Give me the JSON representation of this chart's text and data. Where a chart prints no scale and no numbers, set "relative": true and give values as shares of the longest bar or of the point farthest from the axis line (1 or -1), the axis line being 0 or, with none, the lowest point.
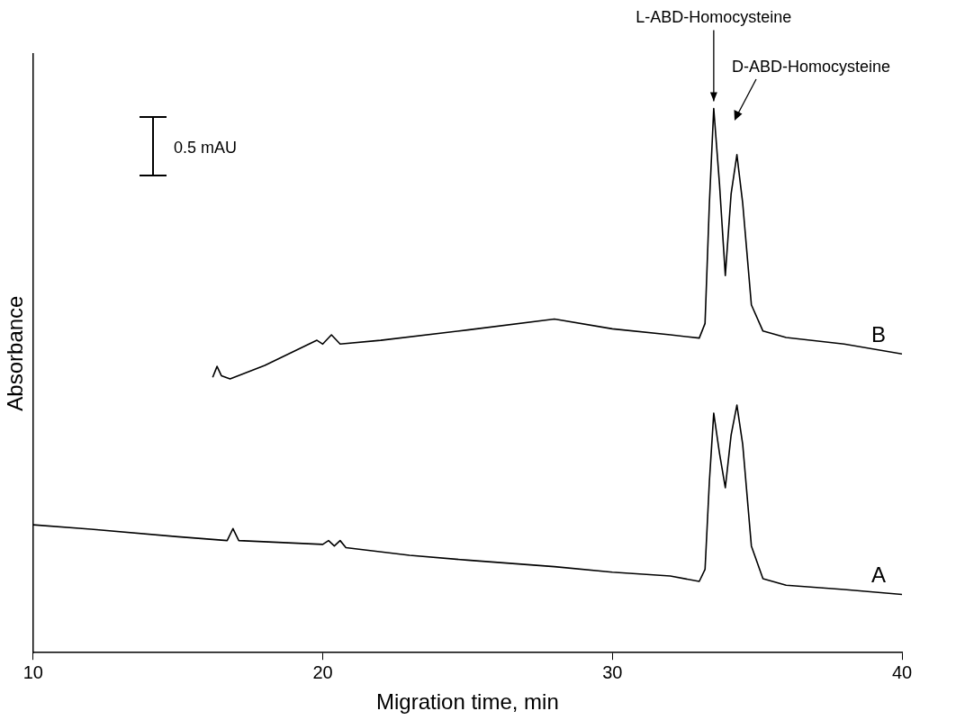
{
  "chart_data": {
    "type": "line",
    "relative": true,
    "xlabel": "Migration time, min",
    "ylabel": "Absorbance",
    "xlim": [
      10,
      40
    ],
    "xticks": [
      10,
      20,
      30,
      40
    ],
    "grid": false,
    "legend": false,
    "marker": "none",
    "line_style": "solid",
    "series": [
      {
        "name": "A",
        "color": "#000000",
        "x": [
          10,
          12,
          15,
          16.7,
          16.9,
          17.1,
          20,
          20.2,
          20.4,
          20.6,
          20.8,
          23,
          25,
          28,
          30,
          32,
          33,
          33.2,
          33.35,
          33.5,
          33.7,
          33.9,
          34.1,
          34.3,
          34.5,
          34.8,
          35.2,
          36,
          38,
          40
        ],
        "values": [
          0.235,
          0.227,
          0.213,
          0.206,
          0.228,
          0.206,
          0.199,
          0.206,
          0.196,
          0.206,
          0.193,
          0.179,
          0.17,
          0.158,
          0.148,
          0.141,
          0.131,
          0.153,
          0.315,
          0.44,
          0.366,
          0.303,
          0.4,
          0.455,
          0.383,
          0.196,
          0.136,
          0.124,
          0.116,
          0.107
        ]
      },
      {
        "name": "B",
        "color": "#000000",
        "x": [
          16.2,
          16.35,
          16.5,
          16.8,
          18,
          19.8,
          20,
          20.3,
          20.6,
          22,
          25,
          28,
          30,
          32,
          33,
          33.2,
          33.35,
          33.5,
          33.7,
          33.9,
          34.1,
          34.3,
          34.5,
          34.8,
          35.2,
          36,
          38,
          40
        ],
        "values": [
          0.506,
          0.526,
          0.509,
          0.503,
          0.528,
          0.574,
          0.567,
          0.584,
          0.567,
          0.574,
          0.593,
          0.613,
          0.595,
          0.584,
          0.578,
          0.605,
          0.826,
          1,
          0.86,
          0.693,
          0.843,
          0.915,
          0.826,
          0.639,
          0.591,
          0.579,
          0.567,
          0.549
        ]
      }
    ],
    "annotations": [
      {
        "text": "L-ABD-Homocysteine",
        "x": 33.5,
        "y": 1
      },
      "D-ABD-Homocysteine",
      "0.5 mAU"
    ]
  }
}
